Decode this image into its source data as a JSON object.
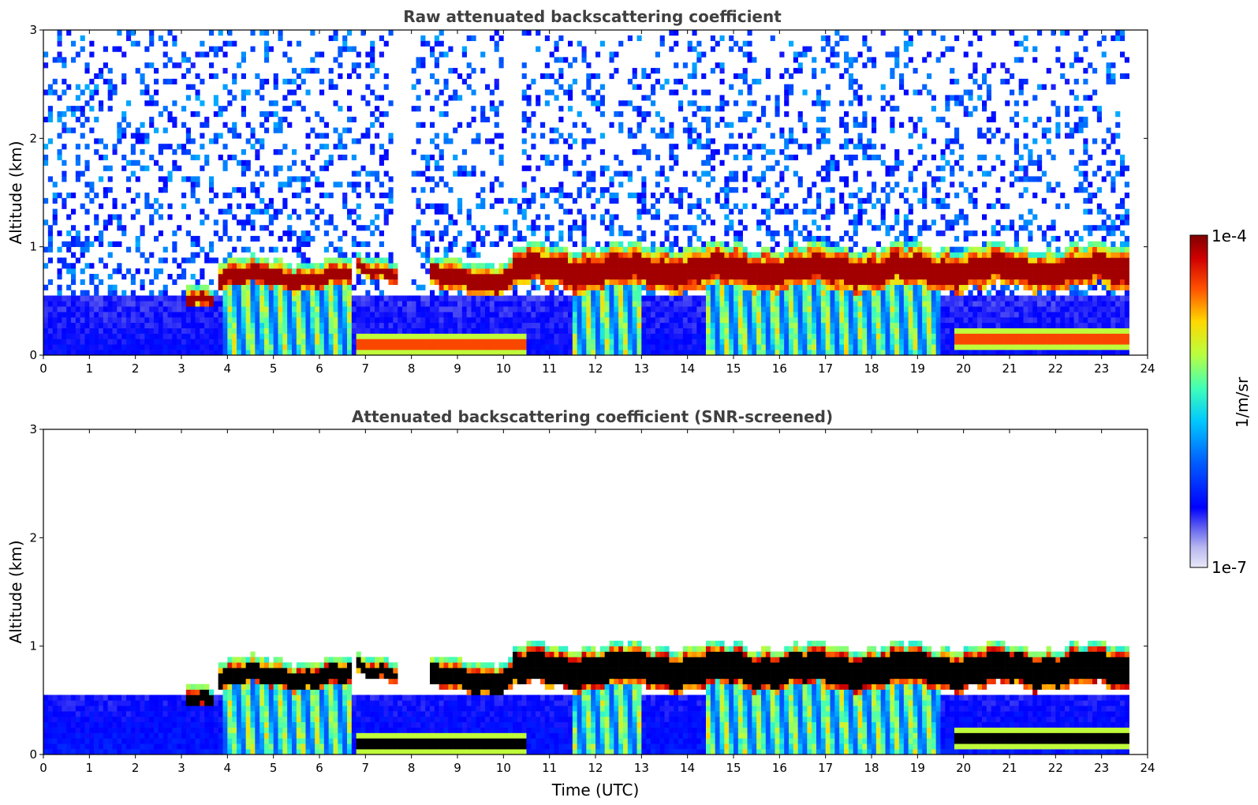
{
  "chart_data": [
    {
      "type": "heatmap",
      "title": "Raw attenuated backscattering coefficient",
      "xlabel": "",
      "ylabel": "Altitude (km)",
      "xlim": [
        0,
        24
      ],
      "ylim": [
        0,
        3
      ],
      "xticks": [
        "0",
        "1",
        "2",
        "3",
        "4",
        "5",
        "6",
        "7",
        "8",
        "9",
        "10",
        "11",
        "12",
        "13",
        "14",
        "15",
        "16",
        "17",
        "18",
        "19",
        "20",
        "21",
        "22",
        "23",
        "24"
      ],
      "yticks": [
        "0",
        "1",
        "2",
        "3"
      ],
      "layers": [
        {
          "name": "surface aerosol layer",
          "t0": 0,
          "t1": 23.6,
          "h0": 0,
          "h1": 0.55,
          "level": 0.12
        },
        {
          "name": "boundary layer cloud",
          "segments": [
            {
              "t0": 3.1,
              "t1": 3.7,
              "h0": 0.48,
              "h1": 0.62
            },
            {
              "t0": 3.8,
              "t1": 6.7,
              "h0": 0.62,
              "h1": 0.82
            },
            {
              "t0": 6.8,
              "t1": 7.7,
              "h0": 0.72,
              "h1": 0.85
            },
            {
              "t0": 8.4,
              "t1": 10.2,
              "h0": 0.58,
              "h1": 0.82
            },
            {
              "t0": 10.2,
              "t1": 23.6,
              "h0": 0.62,
              "h1": 0.95
            }
          ],
          "level": 0.95
        },
        {
          "name": "virga",
          "segments": [
            {
              "t0": 3.9,
              "t1": 6.7
            },
            {
              "t0": 11.5,
              "t1": 13.0
            },
            {
              "t0": 14.4,
              "t1": 19.5
            }
          ],
          "level": 0.55
        },
        {
          "name": "low cloud",
          "segments": [
            {
              "t0": 6.8,
              "t1": 10.5,
              "h0": 0.0,
              "h1": 0.2
            },
            {
              "t0": 19.8,
              "t1": 23.6,
              "h0": 0.05,
              "h1": 0.25
            }
          ],
          "level": 0.9
        }
      ]
    },
    {
      "type": "heatmap",
      "title": "Attenuated backscattering coefficient (SNR-screened)",
      "xlabel": "Time (UTC)",
      "ylabel": "Altitude (km)",
      "xlim": [
        0,
        24
      ],
      "ylim": [
        0,
        3
      ],
      "xticks": [
        "0",
        "1",
        "2",
        "3",
        "4",
        "5",
        "6",
        "7",
        "8",
        "9",
        "10",
        "11",
        "12",
        "13",
        "14",
        "15",
        "16",
        "17",
        "18",
        "19",
        "20",
        "21",
        "22",
        "23",
        "24"
      ],
      "yticks": [
        "0",
        "1",
        "2",
        "3"
      ],
      "layers": [
        {
          "name": "surface aerosol layer",
          "t0": 0,
          "t1": 23.6,
          "h0": 0,
          "h1": 0.5,
          "level": 0.15
        },
        {
          "name": "saturated cloud core",
          "color": "#000000",
          "t0": 3.1,
          "t1": 23.6,
          "h0": 0.62,
          "h1": 0.85
        }
      ]
    }
  ],
  "colorbar": {
    "label": "1/m/sr",
    "max_label": "1e-4",
    "min_label": "1e-7",
    "range": [
      1e-07,
      0.0001
    ],
    "scale": "log",
    "colormap": "jet"
  }
}
